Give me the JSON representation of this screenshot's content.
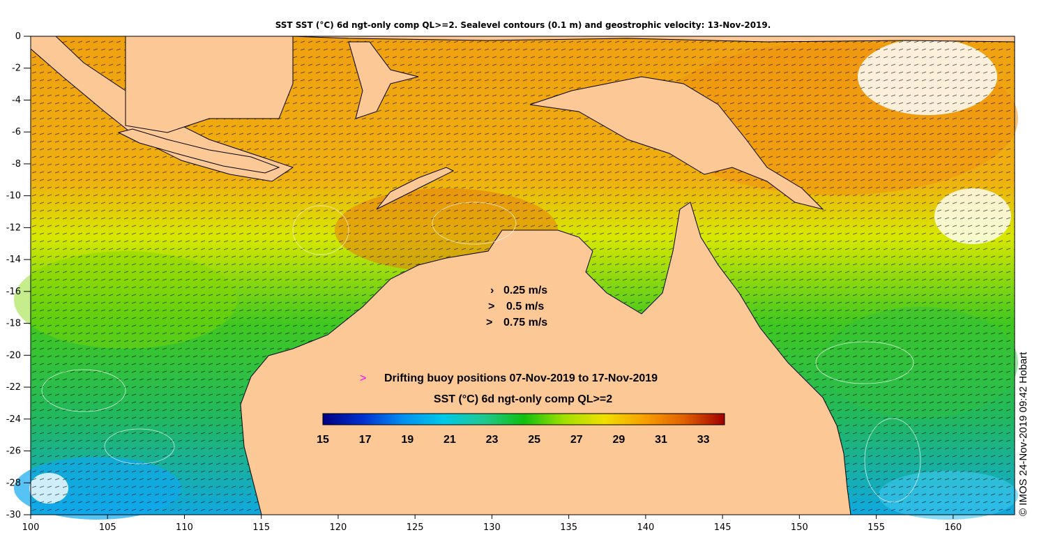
{
  "title": "SST SST (°C) 6d ngt-only comp QL>=2. Sealevel contours (0.1 m) and geostrophic velocity: 13-Nov-2019.",
  "x_axis": {
    "min": 100,
    "max": 164,
    "ticks": [
      "100",
      "105",
      "110",
      "115",
      "120",
      "125",
      "130",
      "135",
      "140",
      "145",
      "150",
      "155",
      "160"
    ]
  },
  "y_axis": {
    "min": -30,
    "max": 0,
    "ticks": [
      "0",
      "-2",
      "-4",
      "-6",
      "-8",
      "-10",
      "-12",
      "-14",
      "-16",
      "-18",
      "-20",
      "-22",
      "-24",
      "-26",
      "-28",
      "-30"
    ]
  },
  "velocity_legend": [
    {
      "symbol": "›",
      "label": "0.25 m/s"
    },
    {
      "symbol": ">",
      "label": "0.5 m/s"
    },
    {
      "symbol": ">",
      "label": "0.75 m/s"
    }
  ],
  "buoy_legend": {
    "symbol": ">",
    "label": "Drifting buoy positions 07-Nov-2019 to 17-Nov-2019",
    "color": "#ff00ff"
  },
  "colorbar": {
    "title": "SST (°C) 6d ngt-only comp QL>=2",
    "ticks": [
      "15",
      "17",
      "19",
      "21",
      "23",
      "25",
      "27",
      "29",
      "31",
      "33"
    ],
    "min": 15,
    "max": 34,
    "colors": [
      "#000080",
      "#0030d0",
      "#0090f0",
      "#00c8e8",
      "#20c890",
      "#10c010",
      "#a0e000",
      "#f0e000",
      "#f8a000",
      "#e06000",
      "#a00000"
    ]
  },
  "credit": "© IMOS 24-Nov-2019 09:42 Hobart",
  "colors": {
    "land": "#fcc896",
    "no_data": "#ffffff",
    "axis": "#000000"
  }
}
